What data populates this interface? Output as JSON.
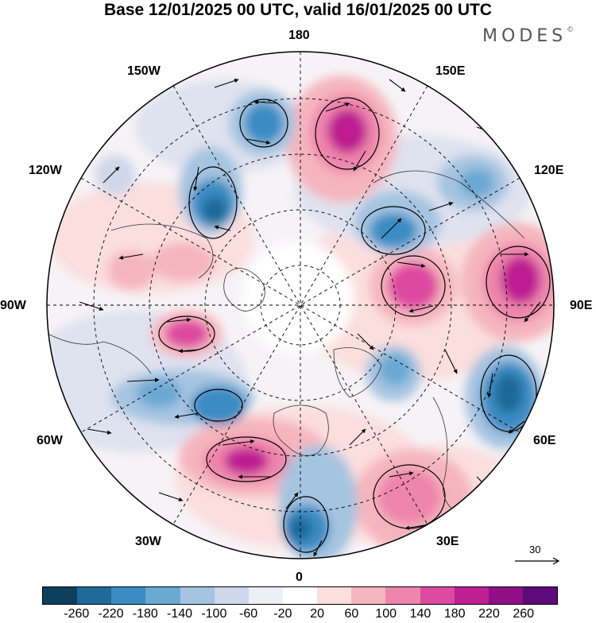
{
  "title": "Base 12/01/2025 00 UTC, valid 16/01/2025 00 UTC",
  "brand": "MODES",
  "brand_mark": "©",
  "longitude_labels": {
    "top": "180",
    "top_right": "150E",
    "upper_right": "120E",
    "right": "90E",
    "lower_right": "60E",
    "bottom_right": "30E",
    "bottom": "0",
    "bottom_left": "30W",
    "lower_left": "60W",
    "left": "90W",
    "upper_left": "120W",
    "top_left": "150W"
  },
  "legend": {
    "ticks": [
      "-260",
      "-220",
      "-180",
      "-140",
      "-100",
      "-60",
      "-20",
      "20",
      "60",
      "100",
      "140",
      "180",
      "220",
      "260"
    ],
    "colors": [
      "#0e3f5c",
      "#1f6a99",
      "#3b8cc4",
      "#6aa9d2",
      "#a5c4e0",
      "#cfd7ea",
      "#eeeef6",
      "#ffffff",
      "#fbdede",
      "#f5b5be",
      "#ee85ac",
      "#de4aa0",
      "#be1f92",
      "#8e0f86",
      "#5e0a7a"
    ]
  },
  "vector_reference": {
    "value": "30"
  },
  "colors": {
    "neg_strong": "#1f6a99",
    "neg_mid": "#6aa9d2",
    "neg_weak": "#cfd7ea",
    "pos_weak": "#fbdede",
    "pos_mid": "#ee85ac",
    "pos_strong": "#be1f92"
  }
}
